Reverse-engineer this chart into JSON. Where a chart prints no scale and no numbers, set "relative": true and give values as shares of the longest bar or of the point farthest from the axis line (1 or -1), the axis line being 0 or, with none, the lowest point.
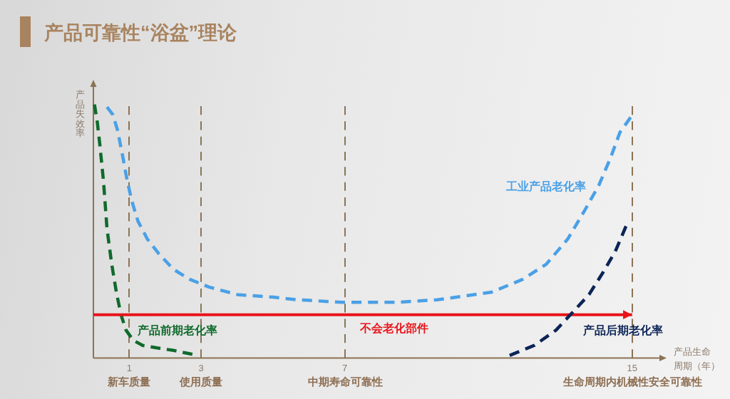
{
  "chart_data": {
    "type": "line",
    "title": "产品可靠性“浴盆”理论",
    "xlabel": "产品生命周期（年）",
    "ylabel": "产品失效率",
    "relative": true,
    "xlim": [
      0,
      15.8
    ],
    "xticks": [
      1,
      3,
      7,
      15
    ],
    "line_style": "dashed",
    "ref_lines": [
      {
        "axis": "x",
        "value": 1,
        "label": "新车质量",
        "color": "#8b7355",
        "line_style": "dashed"
      },
      {
        "axis": "x",
        "value": 3,
        "label": "使用质量",
        "color": "#8b7355",
        "line_style": "dashed"
      },
      {
        "axis": "x",
        "value": 7,
        "label": "中期寿命可靠性",
        "color": "#8b7355",
        "line_style": "dashed"
      },
      {
        "axis": "x",
        "value": 15,
        "label": "生命周期内机械性安全可靠性",
        "color": "#8b7355",
        "line_style": "dashed"
      }
    ],
    "series": [
      {
        "name": "产品前期老化率",
        "color": "#0f6a2c",
        "x": [
          0.03,
          0.11,
          0.18,
          0.28,
          0.38,
          0.51,
          0.64,
          0.77,
          0.91,
          1.11,
          1.37,
          1.77,
          2.23,
          2.76
        ],
        "values": [
          1,
          0.93,
          0.84,
          0.7,
          0.51,
          0.37,
          0.26,
          0.17,
          0.11,
          0.07,
          0.05,
          0.04,
          0.03,
          0.015
        ]
      },
      {
        "name": "工业产品老化率",
        "color": "#4aa0e6",
        "x": [
          0.38,
          0.54,
          0.67,
          0.81,
          0.94,
          1.07,
          1.24,
          1.5,
          1.83,
          2.23,
          2.69,
          3.22,
          4.01,
          5.01,
          5.67,
          6.92,
          8.51,
          9.57,
          10.36,
          11.09,
          11.95,
          12.61,
          13.21,
          13.67,
          14.07,
          14.4,
          14.66,
          14.96
        ],
        "values": [
          0.99,
          0.96,
          0.9,
          0.8,
          0.7,
          0.62,
          0.54,
          0.47,
          0.41,
          0.35,
          0.31,
          0.28,
          0.25,
          0.24,
          0.23,
          0.22,
          0.22,
          0.23,
          0.245,
          0.26,
          0.31,
          0.37,
          0.47,
          0.58,
          0.68,
          0.79,
          0.89,
          0.95
        ]
      },
      {
        "name": "不会老化部件",
        "color": "#e8141b",
        "line_style": "solid",
        "x": [
          0,
          15
        ],
        "values": [
          0.171,
          0.171
        ]
      },
      {
        "name": "产品后期老化率",
        "color": "#0c2456",
        "x": [
          11.59,
          12.28,
          12.88,
          13.34,
          13.8,
          14.2,
          14.53,
          14.83
        ],
        "values": [
          0.01,
          0.05,
          0.11,
          0.18,
          0.25,
          0.34,
          0.42,
          0.52
        ]
      }
    ]
  }
}
